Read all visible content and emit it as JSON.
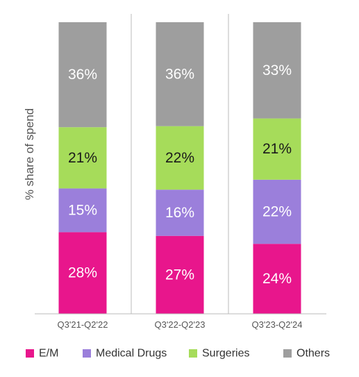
{
  "chart_data": {
    "type": "bar",
    "stacked": true,
    "percent": true,
    "ylabel": "% share of spend",
    "categories": [
      "Q3'21-Q2'22",
      "Q3'22-Q2'23",
      "Q3'23-Q2'24"
    ],
    "series": [
      {
        "name": "E/M",
        "color": "#e8168c",
        "text_color": "#ffffff",
        "values": [
          28,
          27,
          24
        ]
      },
      {
        "name": "Medical Drugs",
        "color": "#9b7fdb",
        "text_color": "#ffffff",
        "values": [
          15,
          16,
          22
        ]
      },
      {
        "name": "Surgeries",
        "color": "#a6dc5a",
        "text_color": "#1a1a1a",
        "values": [
          21,
          22,
          21
        ]
      },
      {
        "name": "Others",
        "color": "#9e9e9e",
        "text_color": "#ffffff",
        "values": [
          36,
          36,
          33
        ]
      }
    ],
    "legend_position": "bottom",
    "grid": false
  }
}
